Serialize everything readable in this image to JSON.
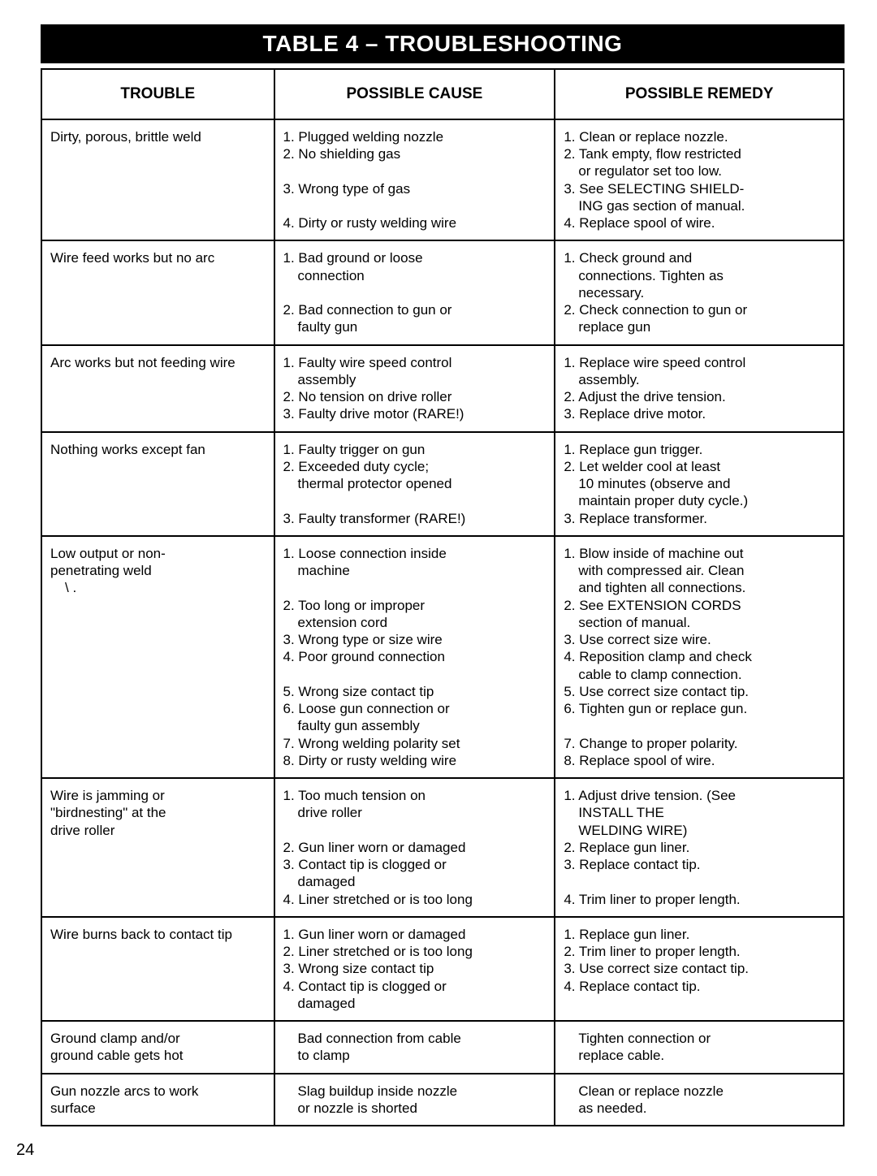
{
  "title": "TABLE 4 – TROUBLESHOOTING",
  "columns": [
    "TROUBLE",
    "POSSIBLE CAUSE",
    "POSSIBLE REMEDY"
  ],
  "rows": [
    {
      "trouble": [
        "Dirty, porous, brittle weld"
      ],
      "cause": [
        "1. Plugged welding nozzle",
        "2. No shielding gas",
        "",
        "3. Wrong type of gas",
        "",
        "4. Dirty or rusty welding wire"
      ],
      "remedy": [
        "1. Clean or replace nozzle.",
        "2. Tank empty, flow restricted",
        "    or regulator set too low.",
        "3. See SELECTING SHIELD-",
        "    ING gas section of manual.",
        "4. Replace spool of wire."
      ]
    },
    {
      "trouble": [
        "Wire feed works but no arc"
      ],
      "cause": [
        "1. Bad ground or loose",
        "     connection",
        "",
        "2. Bad connection to gun or",
        "     faulty gun"
      ],
      "remedy": [
        "1. Check ground and",
        "    connections. Tighten as",
        "    necessary.",
        "2. Check connection to gun or",
        "    replace gun"
      ]
    },
    {
      "trouble": [
        "Arc works but not feeding wire"
      ],
      "cause": [
        "1. Faulty wire speed control",
        "     assembly",
        "2. No tension on drive roller",
        "3. Faulty drive motor (RARE!)"
      ],
      "remedy": [
        "1. Replace wire speed control",
        "    assembly.",
        "2. Adjust the drive tension.",
        "3. Replace drive motor."
      ]
    },
    {
      "trouble": [
        "Nothing works except fan"
      ],
      "cause": [
        "1. Faulty trigger on gun",
        "2. Exceeded duty cycle;",
        "     thermal protector opened",
        "",
        "3. Faulty transformer (RARE!)"
      ],
      "remedy": [
        "1. Replace gun trigger.",
        "2. Let welder cool at least",
        "    10 minutes (observe and",
        "    maintain proper duty cycle.)",
        "3. Replace transformer."
      ]
    },
    {
      "trouble": [
        "Low output or non-",
        "penetrating weld",
        "               \\ ."
      ],
      "cause": [
        "1. Loose connection inside",
        "     machine",
        "",
        "2. Too long or improper",
        "     extension cord",
        "3. Wrong type or size wire",
        "4. Poor ground connection",
        "",
        "5. Wrong size contact tip",
        "6. Loose gun connection or",
        "     faulty gun assembly",
        "7. Wrong welding polarity set",
        "8. Dirty or rusty welding wire"
      ],
      "remedy": [
        "1. Blow inside of machine out",
        "    with compressed air. Clean",
        "    and tighten all connections.",
        "2. See EXTENSION CORDS",
        "    section of manual.",
        "3. Use correct size wire.",
        "4. Reposition clamp and check",
        "    cable to clamp connection.",
        "5. Use correct size contact tip.",
        "6. Tighten gun or replace gun.",
        "",
        "7. Change to proper polarity.",
        "8. Replace spool of wire."
      ]
    },
    {
      "trouble": [
        "Wire is jamming or",
        "\"birdnesting\" at the",
        "drive roller"
      ],
      "cause": [
        "1. Too much tension on",
        "     drive roller",
        "",
        "2. Gun liner worn or damaged",
        "3. Contact tip is clogged or",
        "     damaged",
        "4. Liner stretched or is too long"
      ],
      "remedy": [
        "1. Adjust drive tension. (See",
        "    INSTALL THE",
        "    WELDING WIRE)",
        "2. Replace gun liner.",
        "3. Replace contact tip.",
        "",
        "4. Trim liner to proper length."
      ]
    },
    {
      "trouble": [
        "Wire burns back to contact tip"
      ],
      "cause": [
        "1. Gun liner worn or damaged",
        "2. Liner stretched or is too long",
        "3. Wrong size contact tip",
        "4. Contact tip is clogged or",
        "     damaged"
      ],
      "remedy": [
        "1. Replace gun liner.",
        "2. Trim liner to proper length.",
        "3. Use correct size contact tip.",
        "4. Replace contact tip."
      ]
    },
    {
      "trouble": [
        "Ground clamp and/or",
        "ground cable gets hot"
      ],
      "cause": [
        "     Bad connection from cable",
        "     to clamp"
      ],
      "remedy": [
        "    Tighten connection or",
        "    replace cable."
      ]
    },
    {
      "trouble": [
        "Gun nozzle arcs to work",
        "surface"
      ],
      "cause": [
        "     Slag buildup inside nozzle",
        "     or nozzle is shorted"
      ],
      "remedy": [
        "    Clean or replace nozzle",
        "    as needed."
      ]
    }
  ],
  "page_number": "24"
}
